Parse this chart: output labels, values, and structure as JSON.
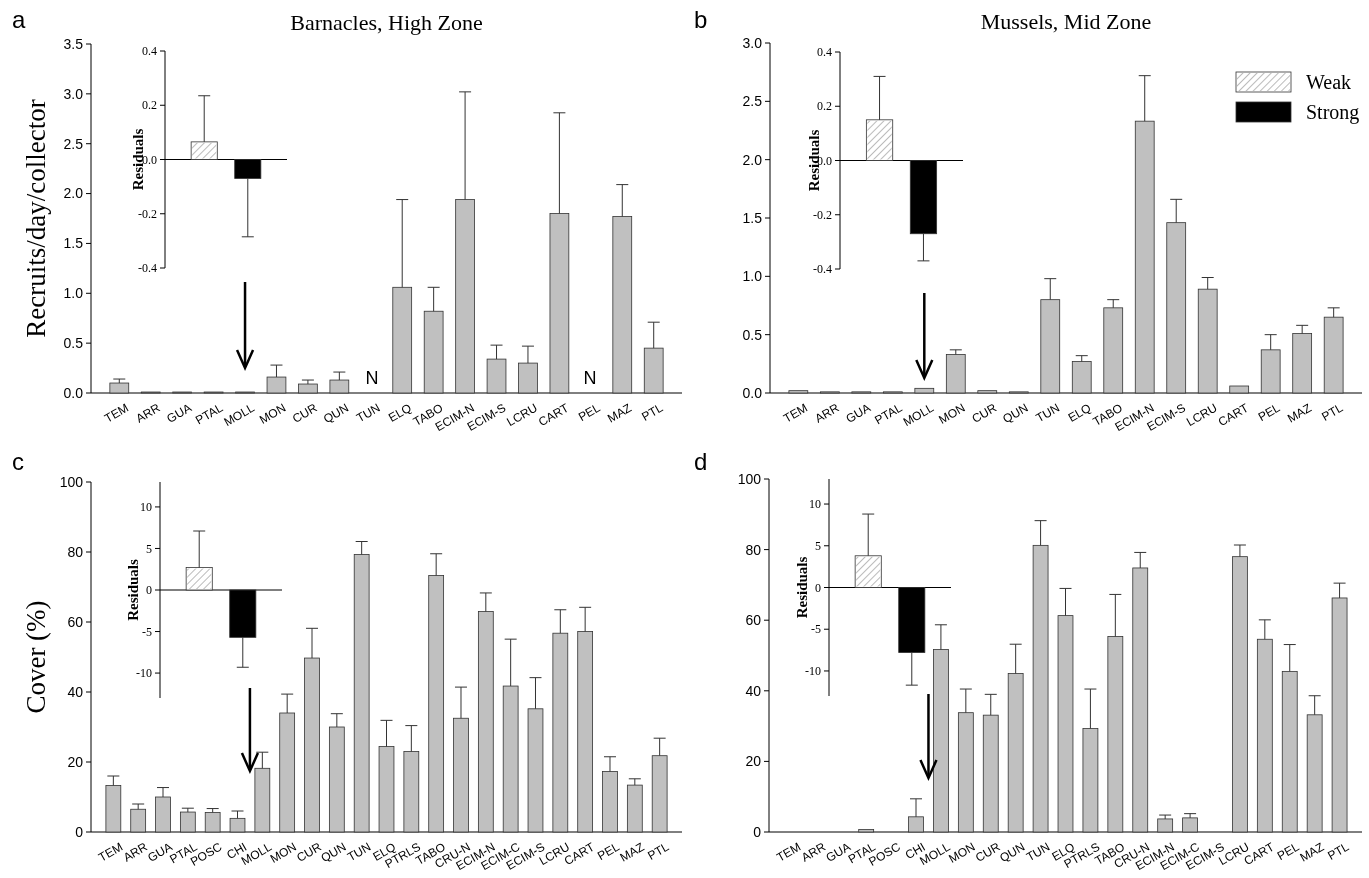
{
  "chart_data": [
    {
      "type": "bar",
      "title": "Barnacles, High Zone",
      "ylabel": "Recruits/day/collector",
      "annotations": [
        "a",
        "N",
        "N"
      ],
      "categories": [
        "TEM",
        "ARR",
        "GUA",
        "PTAL",
        "MOLL",
        "MON",
        "CUR",
        "QUN",
        "TUN",
        "ELQ",
        "TABO",
        "ECIM-N",
        "ECIM-S",
        "LCRU",
        "CART",
        "PEL",
        "MAZ",
        "PTL"
      ],
      "values": [
        0.1,
        0.01,
        0.01,
        0.01,
        0.01,
        0.16,
        0.09,
        0.13,
        null,
        1.06,
        0.82,
        1.94,
        0.34,
        0.3,
        1.8,
        null,
        1.77,
        0.45
      ],
      "errors": [
        [
          0.1,
          0.14
        ],
        null,
        null,
        null,
        null,
        [
          0.16,
          0.28
        ],
        [
          0.09,
          0.13
        ],
        [
          0.13,
          0.21
        ],
        null,
        [
          1.06,
          1.94
        ],
        [
          0.82,
          1.06
        ],
        [
          1.94,
          3.02
        ],
        [
          0.34,
          0.48
        ],
        [
          0.3,
          0.47
        ],
        [
          1.8,
          2.81
        ],
        null,
        [
          1.77,
          2.09
        ],
        [
          0.45,
          0.71
        ]
      ],
      "color": "#c0c0c0",
      "ylim": [
        0,
        3.5
      ],
      "yticks": [
        {
          "value": 0,
          "label": "0.0"
        },
        0.5,
        {
          "value": 1,
          "label": "1.0"
        },
        1.5,
        {
          "value": 2,
          "label": "2.0"
        },
        2.5,
        {
          "value": 3,
          "label": "3.0"
        },
        3.5
      ]
    },
    {
      "type": "bar",
      "ylabel": "Residuals",
      "categories": [
        null,
        null
      ],
      "tick_labels": "y",
      "series": [
        {
          "color": "#ffffff",
          "values": [
            0.065,
            null
          ],
          "errors": [
            [
              0.065,
              0.235
            ],
            null
          ]
        },
        {
          "color": "#000000",
          "values": [
            null,
            -0.07
          ],
          "errors": [
            null,
            [
              -0.285,
              -0.07
            ]
          ]
        }
      ],
      "ylim": [
        -0.4,
        0.4
      ],
      "yticks": [
        -0.4,
        -0.2,
        {
          "value": 0,
          "label": "0.0"
        },
        0.2,
        0.4
      ]
    },
    {
      "type": "bar",
      "title": "Mussels, Mid Zone",
      "annotations": [
        "b"
      ],
      "categories": [
        "TEM",
        "ARR",
        "GUA",
        "PTAL",
        "MOLL",
        "MON",
        "CUR",
        "QUN",
        "TUN",
        "ELQ",
        "TABO",
        "ECIM-N",
        "ECIM-S",
        "LCRU",
        "CART",
        "PEL",
        "MAZ",
        "PTL"
      ],
      "values": [
        0.02,
        0.01,
        0.01,
        0.01,
        0.04,
        0.33,
        0.02,
        0.01,
        0.8,
        0.27,
        0.73,
        2.33,
        1.46,
        0.89,
        0.06,
        0.37,
        0.51,
        0.65
      ],
      "errors": [
        null,
        null,
        null,
        null,
        null,
        [
          0.33,
          0.37
        ],
        null,
        null,
        [
          0.8,
          0.98
        ],
        [
          0.27,
          0.32
        ],
        [
          0.73,
          0.8
        ],
        [
          2.33,
          2.72
        ],
        [
          1.46,
          1.66
        ],
        [
          0.89,
          0.99
        ],
        null,
        [
          0.37,
          0.5
        ],
        [
          0.51,
          0.58
        ],
        [
          0.65,
          0.73
        ]
      ],
      "color": "#c0c0c0",
      "ylim": [
        0,
        3
      ],
      "yticks": [
        {
          "value": 0,
          "label": "0.0"
        },
        0.5,
        {
          "value": 1,
          "label": "1.0"
        },
        1.5,
        {
          "value": 2,
          "label": "2.0"
        },
        2.5,
        {
          "value": 3,
          "label": "3.0"
        }
      ]
    },
    {
      "type": "bar",
      "ylabel": "Residuals",
      "categories": [
        null,
        null
      ],
      "tick_labels": "y",
      "legend": "right",
      "series": [
        {
          "name": "Weak",
          "color": "#ffffff",
          "values": [
            0.15,
            null
          ],
          "errors": [
            [
              0.15,
              0.31
            ],
            null
          ]
        },
        {
          "name": "Strong",
          "color": "#000000",
          "values": [
            null,
            -0.27
          ],
          "errors": [
            null,
            [
              -0.37,
              -0.27
            ]
          ]
        }
      ],
      "ylim": [
        -0.4,
        0.4
      ],
      "yticks": [
        -0.4,
        -0.2,
        {
          "value": 0,
          "label": "0.0"
        },
        0.2,
        0.4
      ]
    },
    {
      "type": "bar",
      "ylabel": "Cover (%)",
      "annotations": [
        "c"
      ],
      "categories": [
        "TEM",
        "ARR",
        "GUA",
        "PTAL",
        "POSC",
        "CHI",
        "MOLL",
        "MON",
        "CUR",
        "QUN",
        "TUN",
        "ELQ",
        "PTRLS",
        "TABO",
        "CRU-N",
        "ECIM-N",
        "ECIM-C",
        "ECIM-S",
        "LCRU",
        "CART",
        "PEL",
        "MAZ",
        "PTL"
      ],
      "values": [
        13.3,
        6.5,
        10,
        5.7,
        5.6,
        3.9,
        18.2,
        34,
        49.7,
        30,
        79.3,
        24.4,
        23,
        73.3,
        32.5,
        63,
        41.7,
        35.2,
        56.8,
        57.3,
        17.3,
        13.4,
        21.8
      ],
      "errors": [
        [
          13.3,
          16
        ],
        [
          6.5,
          8
        ],
        [
          10,
          12.7
        ],
        [
          5.7,
          6.8
        ],
        [
          5.6,
          6.7
        ],
        [
          3.9,
          6
        ],
        [
          18.2,
          22.8
        ],
        [
          34,
          39.4
        ],
        [
          49.7,
          58.2
        ],
        [
          30,
          33.8
        ],
        [
          79.3,
          83
        ],
        [
          24.4,
          31.9
        ],
        [
          23,
          30.4
        ],
        [
          73.3,
          79.5
        ],
        [
          32.5,
          41.4
        ],
        [
          63,
          68.3
        ],
        [
          41.7,
          55.1
        ],
        [
          35.2,
          44.1
        ],
        [
          56.8,
          63.5
        ],
        [
          57.3,
          64.2
        ],
        [
          17.3,
          21.5
        ],
        [
          13.4,
          15.2
        ],
        [
          21.8,
          26.8
        ]
      ],
      "color": "#c0c0c0",
      "ylim": [
        0,
        100
      ],
      "yticks": [
        0,
        20,
        40,
        60,
        80,
        100
      ]
    },
    {
      "type": "bar",
      "ylabel": "Residuals",
      "categories": [
        null,
        null
      ],
      "tick_labels": "y",
      "series": [
        {
          "color": "#ffffff",
          "values": [
            2.7,
            null
          ],
          "errors": [
            [
              2.7,
              7.1
            ],
            null
          ]
        },
        {
          "color": "#000000",
          "values": [
            null,
            -5.7
          ],
          "errors": [
            null,
            [
              -9.3,
              -5.7
            ]
          ]
        }
      ],
      "ylim": [
        -13,
        13
      ],
      "yticks": [
        -10,
        -5,
        0,
        5,
        10
      ]
    },
    {
      "type": "bar",
      "annotations": [
        "d"
      ],
      "categories": [
        "TEM",
        "ARR",
        "GUA",
        "PTAL",
        "POSC",
        "CHI",
        "MOLL",
        "MON",
        "CUR",
        "QUN",
        "TUN",
        "ELQ",
        "PTRLS",
        "TABO",
        "CRU-N",
        "ECIM-N",
        "ECIM-C",
        "ECIM-S",
        "LCRU",
        "CART",
        "PEL",
        "MAZ",
        "PTL"
      ],
      "values": [
        null,
        null,
        null,
        0.7,
        null,
        4.3,
        51.7,
        33.8,
        33.1,
        44.9,
        81.2,
        61.3,
        29.3,
        55.4,
        74.8,
        3.7,
        4,
        null,
        78,
        54.6,
        45.5,
        33.2,
        66.3
      ],
      "errors": [
        null,
        null,
        null,
        null,
        null,
        [
          4.3,
          9.4
        ],
        [
          51.7,
          58.7
        ],
        [
          33.8,
          40.5
        ],
        [
          33.1,
          39
        ],
        [
          44.9,
          53.2
        ],
        [
          81.2,
          88.2
        ],
        [
          61.3,
          69
        ],
        [
          29.3,
          40.5
        ],
        [
          55.4,
          67.3
        ],
        [
          74.8,
          79.2
        ],
        [
          3.7,
          4.8
        ],
        [
          4,
          5.2
        ],
        null,
        [
          78,
          81.3
        ],
        [
          54.6,
          60.1
        ],
        [
          45.5,
          53.1
        ],
        [
          33.2,
          38.6
        ],
        [
          66.3,
          70.5
        ]
      ],
      "color": "#c0c0c0",
      "ylim": [
        0,
        100
      ],
      "yticks": [
        0,
        20,
        40,
        60,
        80,
        100
      ]
    },
    {
      "type": "bar",
      "ylabel": "Residuals",
      "categories": [
        null,
        null
      ],
      "tick_labels": "y",
      "series": [
        {
          "color": "#ffffff",
          "values": [
            3.8,
            null
          ],
          "errors": [
            [
              3.8,
              8.8
            ],
            null
          ]
        },
        {
          "color": "#000000",
          "values": [
            null,
            -7.8
          ],
          "errors": [
            null,
            [
              -11.7,
              -7.8
            ]
          ]
        }
      ],
      "ylim": [
        -13,
        13
      ],
      "yticks": [
        -10,
        -5,
        0,
        5,
        10
      ]
    }
  ]
}
